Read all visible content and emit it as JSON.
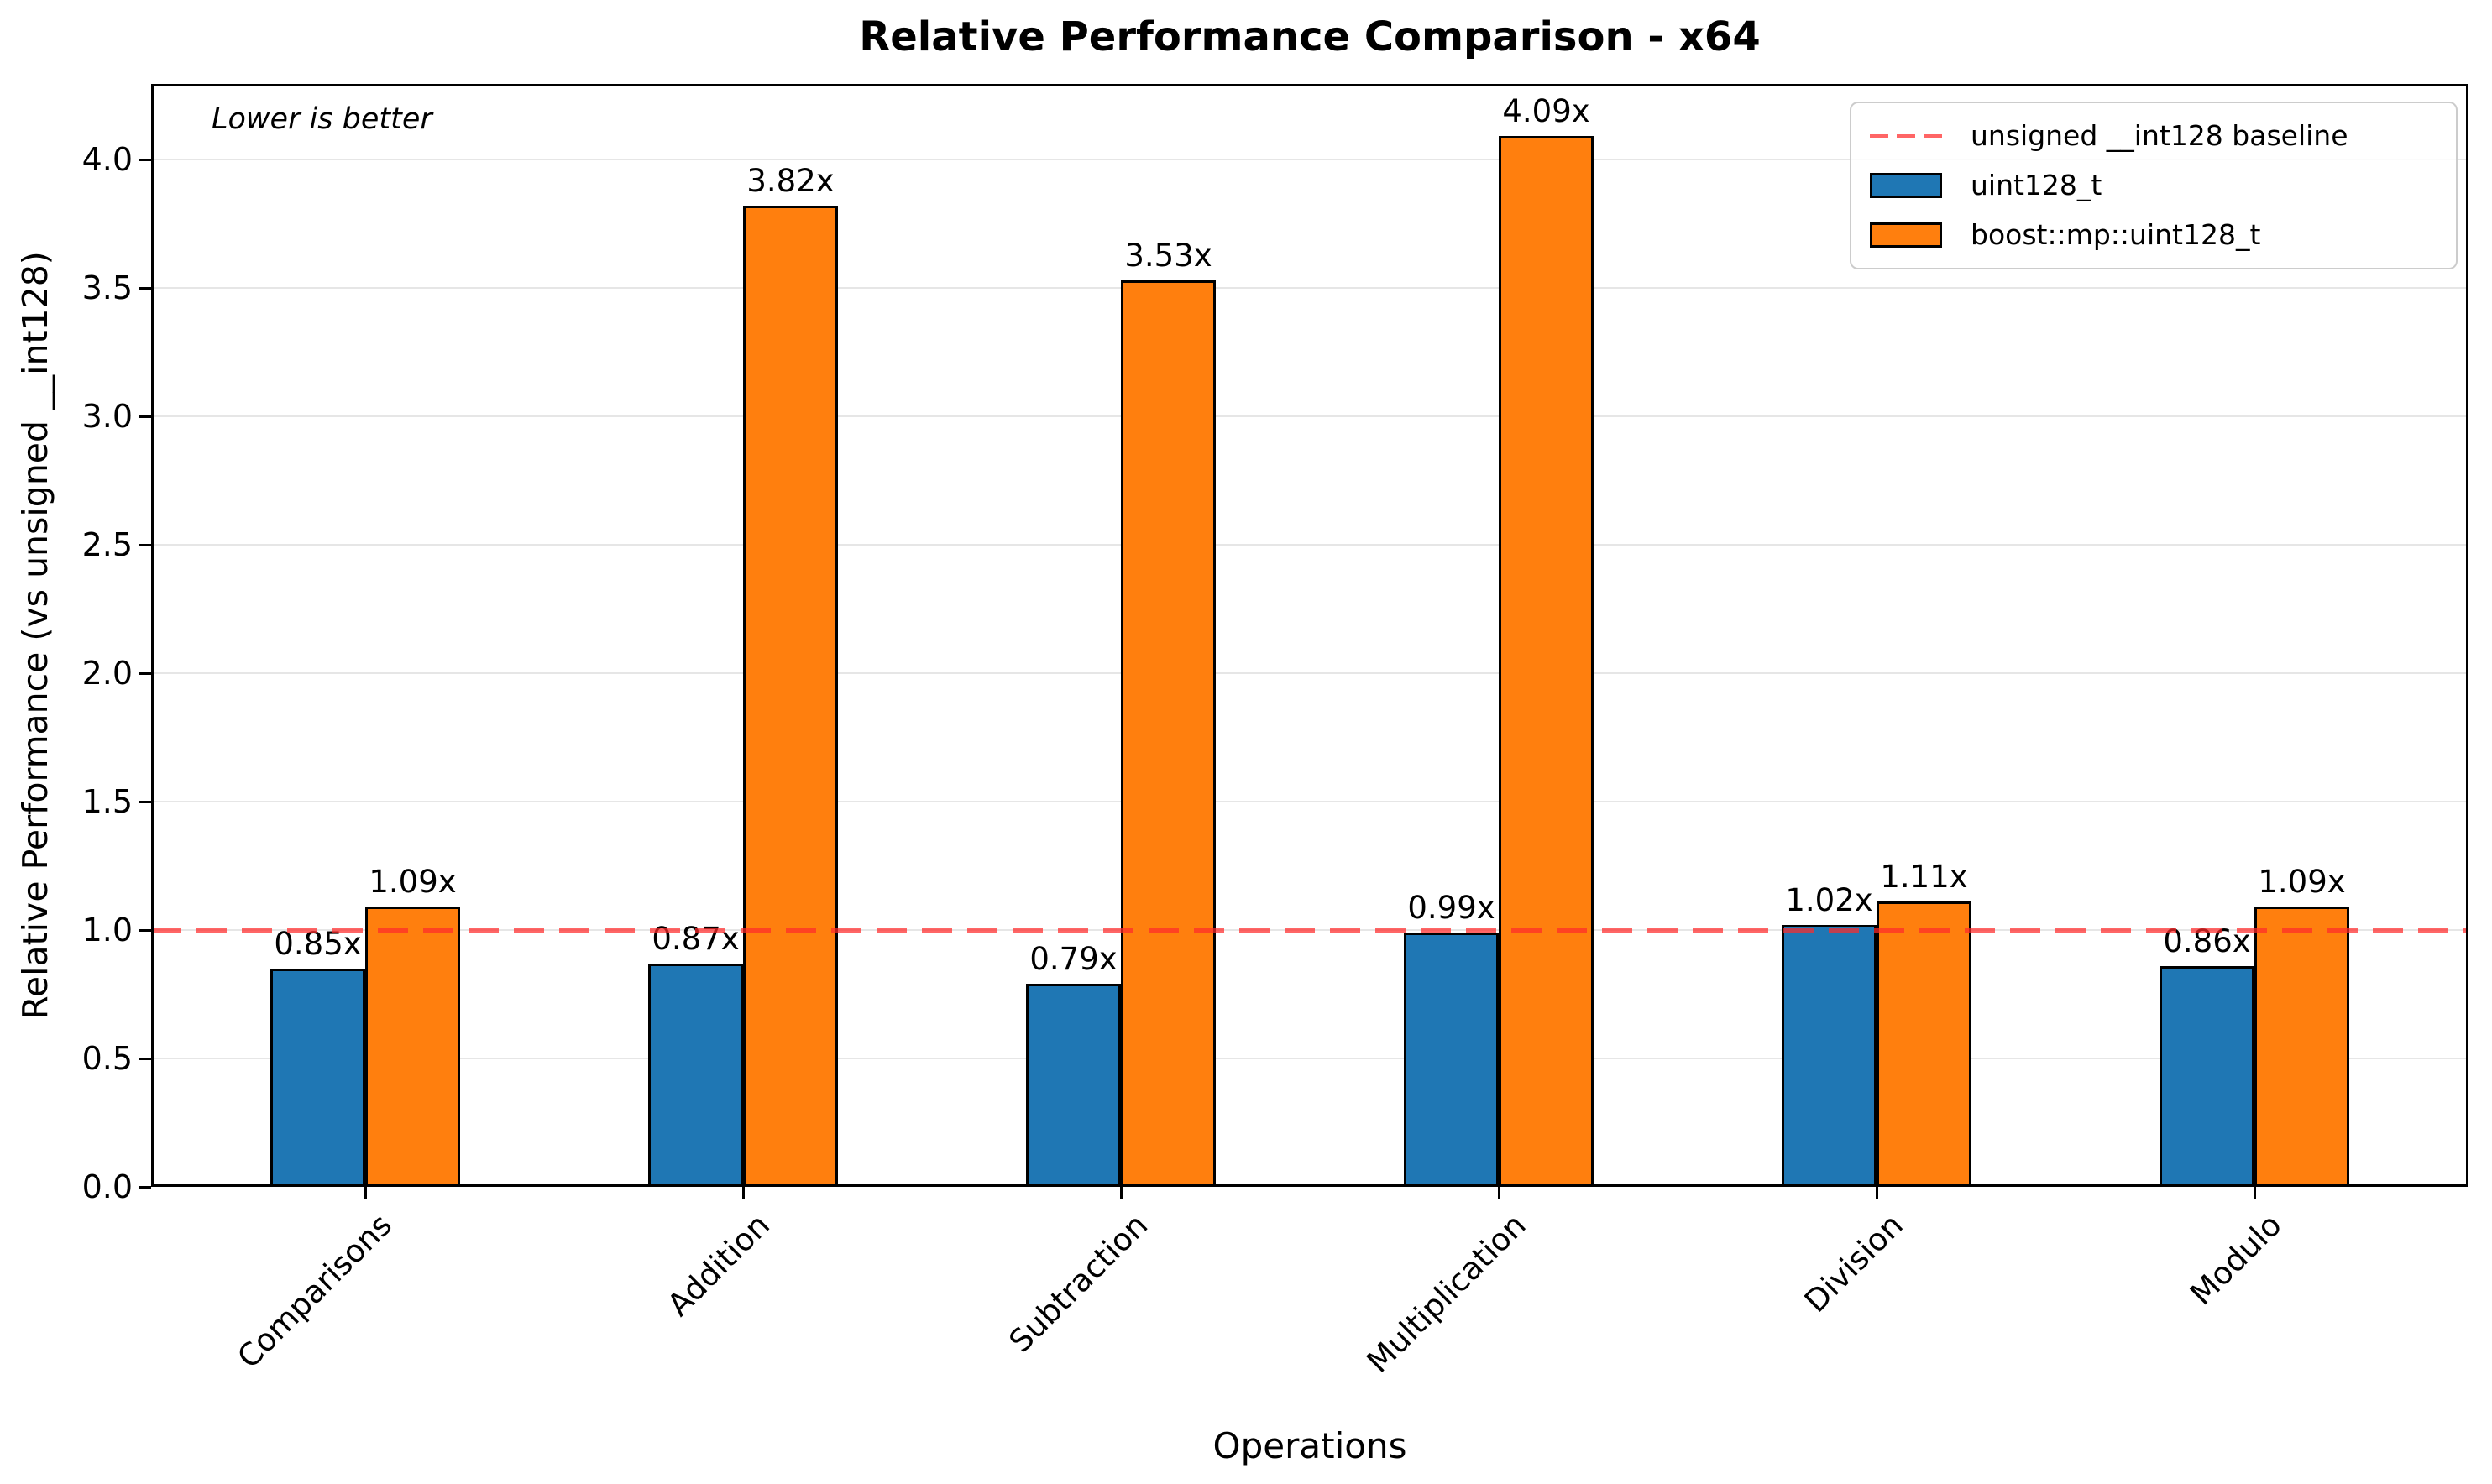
{
  "chart_data": {
    "type": "bar",
    "title": "Relative Performance Comparison - x64",
    "xlabel": "Operations",
    "ylabel": "Relative Performance (vs unsigned __int128)",
    "annotation": "Lower is better",
    "categories": [
      "Comparisons",
      "Addition",
      "Subtraction",
      "Multiplication",
      "Division",
      "Modulo"
    ],
    "series": [
      {
        "name": "uint128_t",
        "color": "#1f77b4",
        "values": [
          0.85,
          0.87,
          0.79,
          0.99,
          1.02,
          0.86
        ],
        "labels": [
          "0.85x",
          "0.87x",
          "0.79x",
          "0.99x",
          "1.02x",
          "0.86x"
        ]
      },
      {
        "name": "boost::mp::uint128_t",
        "color": "#ff7f0e",
        "values": [
          1.09,
          3.82,
          3.53,
          4.09,
          1.11,
          1.09
        ],
        "labels": [
          "1.09x",
          "3.82x",
          "3.53x",
          "4.09x",
          "1.11x",
          "1.09x"
        ]
      }
    ],
    "baseline": {
      "value": 1.0,
      "label": "unsigned __int128 baseline",
      "color": "#ff2a2a",
      "style": "dashed"
    },
    "yticks": [
      "0.0",
      "0.5",
      "1.0",
      "1.5",
      "2.0",
      "2.5",
      "3.0",
      "3.5",
      "4.0"
    ],
    "ylim": [
      0,
      4.29
    ],
    "grid": true,
    "legend_position": "upper right"
  }
}
